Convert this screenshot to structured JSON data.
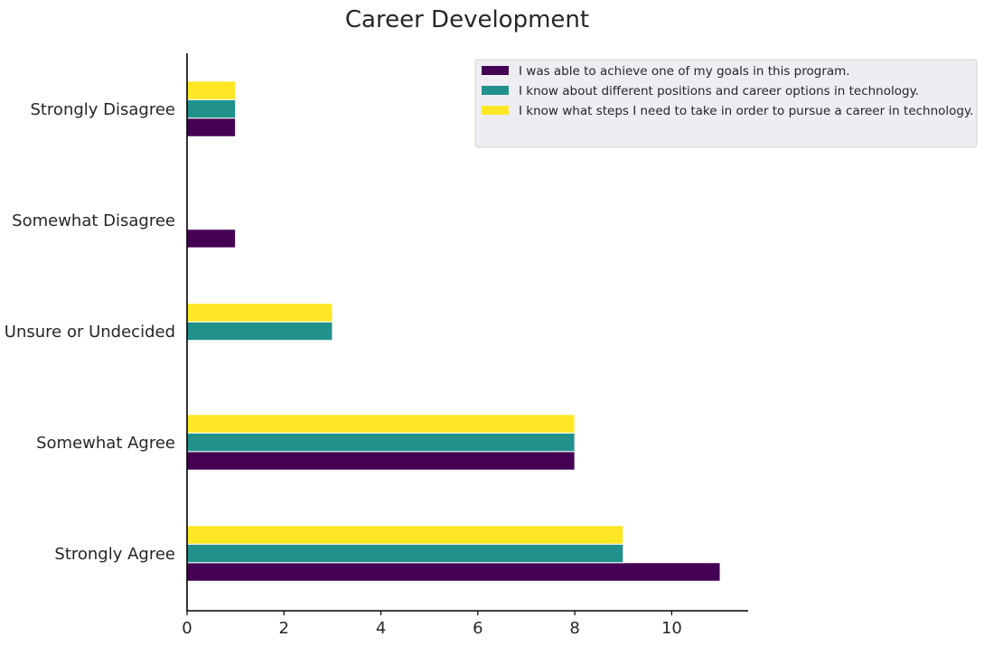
{
  "chart_data": {
    "type": "bar",
    "orientation": "horizontal",
    "title": "Career Development",
    "xlabel": "",
    "ylabel": "",
    "categories": [
      "Strongly Disagree",
      "Somewhat Disagree",
      "Unsure or Undecided",
      "Somewhat Agree",
      "Strongly Agree"
    ],
    "series": [
      {
        "name": "I was able to achieve one of my goals in this program.",
        "color": "#440154",
        "values": [
          1,
          1,
          0,
          8,
          11
        ]
      },
      {
        "name": "I know about different positions and career options in technology.",
        "color": "#21918c",
        "values": [
          1,
          0,
          3,
          8,
          9
        ]
      },
      {
        "name": "I know what steps I need to take in order to pursue a career in technology.",
        "color": "#fde725",
        "values": [
          1,
          0,
          3,
          8,
          9
        ]
      }
    ],
    "xticks": [
      0,
      2,
      4,
      6,
      8,
      10
    ],
    "xlim": [
      0,
      11.55
    ],
    "grid": false,
    "legend_position": "top-right"
  }
}
